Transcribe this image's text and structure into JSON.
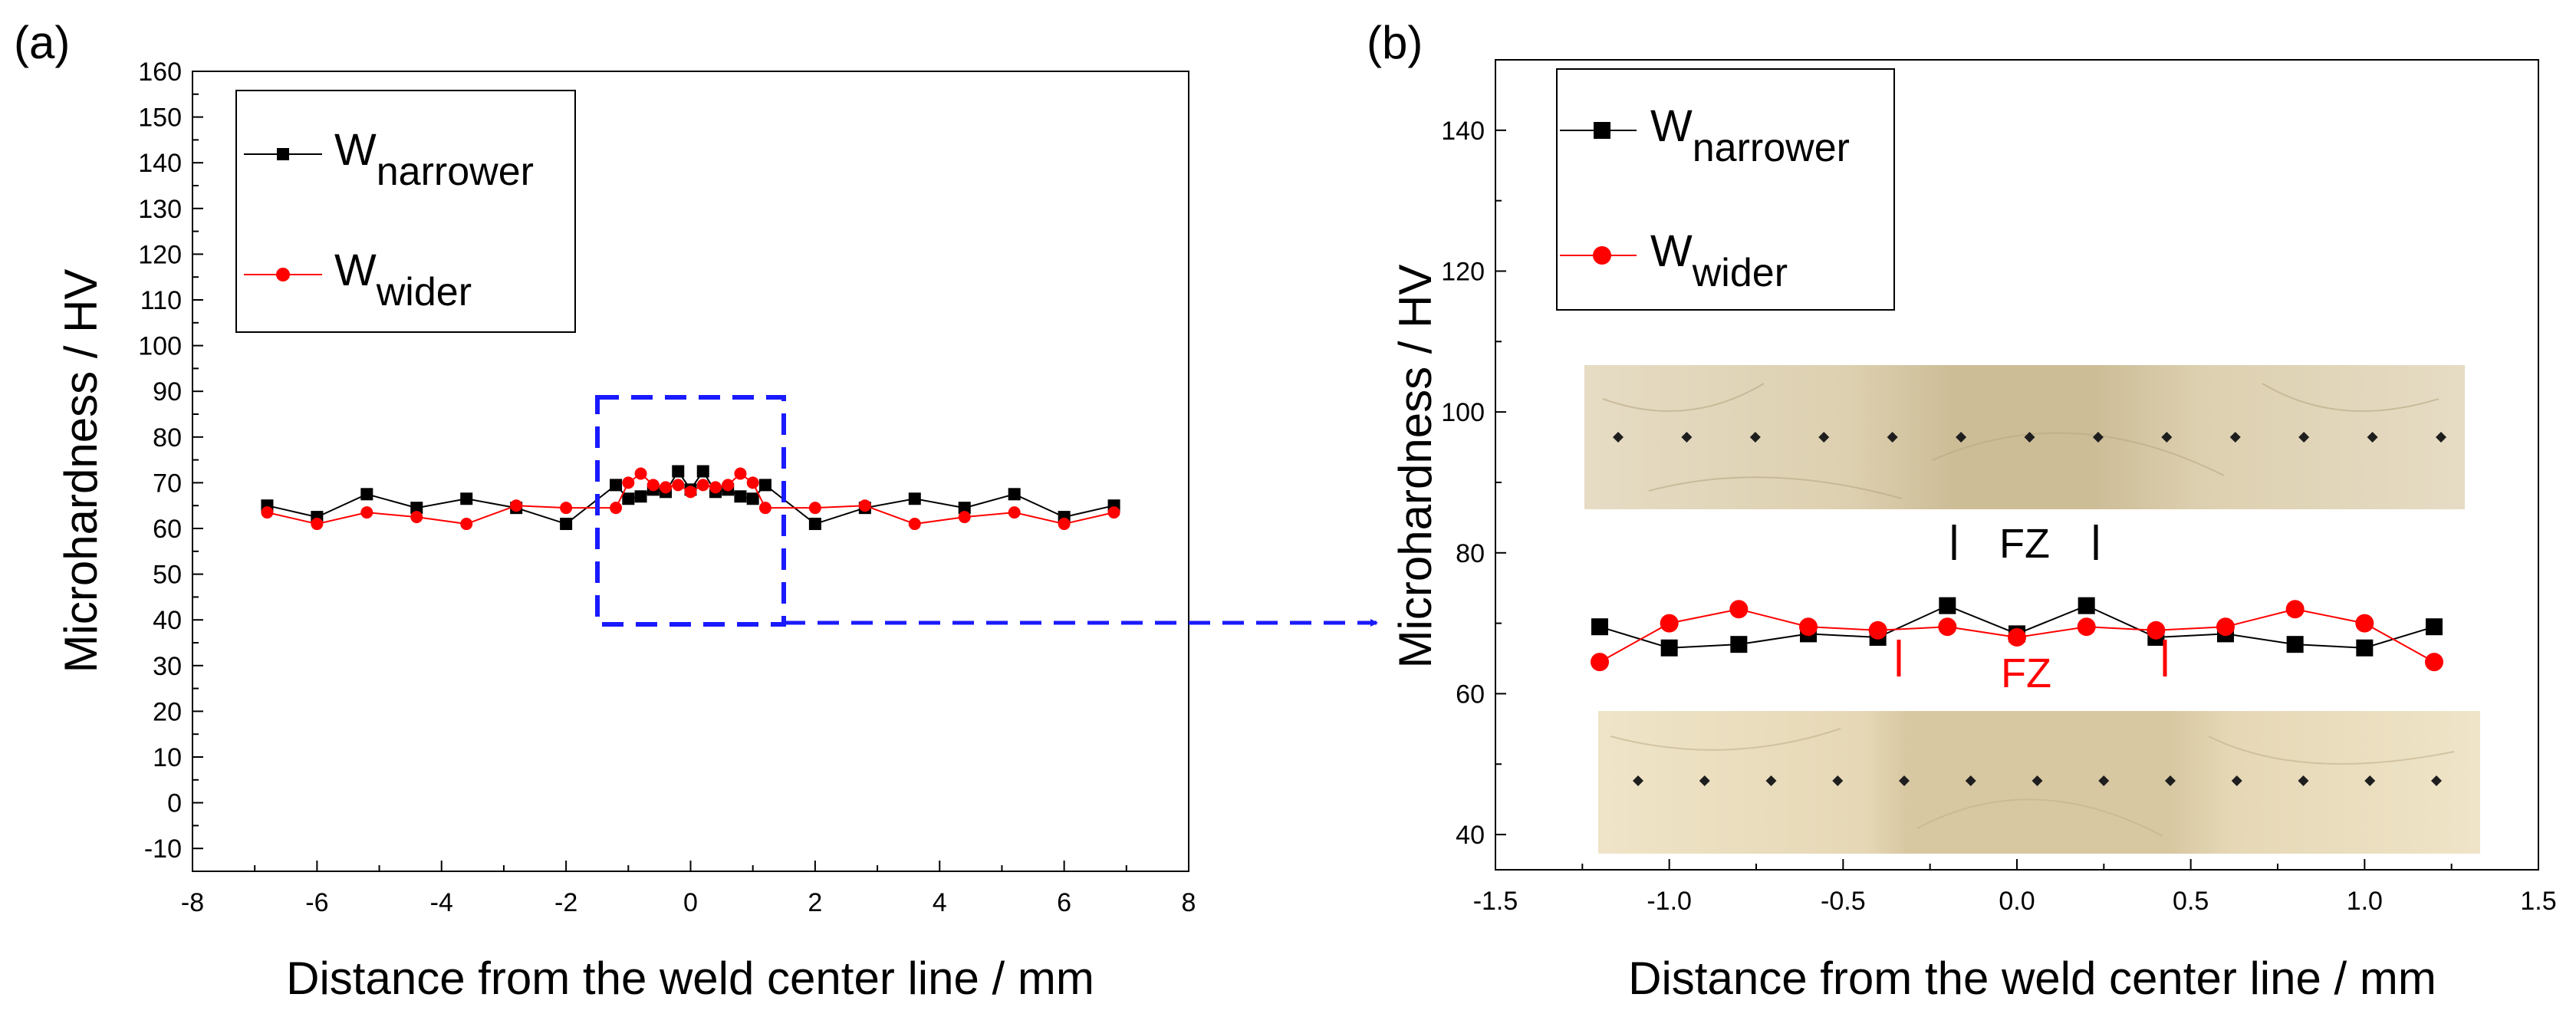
{
  "figure": {
    "panel_a_label": "(a)",
    "panel_b_label": "(b)"
  },
  "chart_data": [
    {
      "panel": "(a)",
      "type": "line",
      "xlabel": "Distance from the weld center line / mm",
      "ylabel": "Microhardness / HV",
      "xlim": [
        -8,
        8
      ],
      "ylim": [
        -15,
        160
      ],
      "xticks": [
        -8,
        -6,
        -4,
        -2,
        0,
        2,
        4,
        6,
        8
      ],
      "xtick_labels": [
        "-8",
        "-6",
        "-4",
        "-2",
        "0",
        "2",
        "4",
        "6",
        "8"
      ],
      "yticks": [
        -10,
        0,
        10,
        20,
        30,
        40,
        50,
        60,
        70,
        80,
        90,
        100,
        110,
        120,
        130,
        140,
        150,
        160
      ],
      "ytick_labels": [
        "-10",
        "0",
        "10",
        "20",
        "30",
        "40",
        "50",
        "60",
        "70",
        "80",
        "90",
        "100",
        "110",
        "120",
        "130",
        "140",
        "150",
        "160"
      ],
      "legend": [
        {
          "main": "W",
          "sub": "narrower",
          "color": "#000000",
          "marker": "square"
        },
        {
          "main": "W",
          "sub": "wider",
          "color": "#ff0000",
          "marker": "circle"
        }
      ],
      "legend_position": "top-left",
      "series": [
        {
          "name": "W narrower",
          "color": "#000000",
          "marker": "square",
          "x": [
            -6.8,
            -6.0,
            -5.2,
            -4.4,
            -3.6,
            -2.8,
            -2.0,
            -1.2,
            -1.0,
            -0.8,
            -0.6,
            -0.4,
            -0.2,
            0.0,
            0.2,
            0.4,
            0.6,
            0.8,
            1.0,
            1.2,
            2.0,
            2.8,
            3.6,
            4.4,
            5.2,
            6.0,
            6.8
          ],
          "y": [
            65,
            62.5,
            67.5,
            64.5,
            66.5,
            64.5,
            61,
            69.5,
            66.5,
            67,
            68.5,
            68,
            72.5,
            68.5,
            72.5,
            68,
            68.5,
            67,
            66.5,
            69.5,
            61,
            64.5,
            66.5,
            64.5,
            67.5,
            62.5,
            65
          ]
        },
        {
          "name": "W wider",
          "color": "#ff0000",
          "marker": "circle",
          "x": [
            -6.8,
            -6.0,
            -5.2,
            -4.4,
            -3.6,
            -2.8,
            -2.0,
            -1.2,
            -1.0,
            -0.8,
            -0.6,
            -0.4,
            -0.2,
            0.0,
            0.2,
            0.4,
            0.6,
            0.8,
            1.0,
            1.2,
            2.0,
            2.8,
            3.6,
            4.4,
            5.2,
            6.0,
            6.8
          ],
          "y": [
            63.5,
            61,
            63.5,
            62.5,
            61,
            65,
            64.5,
            64.5,
            70,
            72,
            69.5,
            69,
            69.5,
            68,
            69.5,
            69,
            69.5,
            72,
            70,
            64.5,
            64.5,
            65,
            61,
            62.5,
            63.5,
            61,
            63.5
          ]
        }
      ],
      "annotation": "dashed blue box around -1.5 to 1.5 mm, 40 to 89 HV, arrow pointing to panel (b)"
    },
    {
      "panel": "(b)",
      "type": "line",
      "xlabel": "Distance from the weld center line / mm",
      "ylabel": "Microhardness / HV",
      "xlim": [
        -1.5,
        1.5
      ],
      "ylim": [
        35,
        150
      ],
      "xticks": [
        -1.5,
        -1.0,
        -0.5,
        0.0,
        0.5,
        1.0,
        1.5
      ],
      "xtick_labels": [
        "-1.5",
        "-1.0",
        "-0.5",
        "0.0",
        "0.5",
        "1.0",
        "1.5"
      ],
      "yticks": [
        40,
        60,
        80,
        100,
        120,
        140
      ],
      "ytick_labels": [
        "40",
        "60",
        "80",
        "100",
        "120",
        "140"
      ],
      "legend": [
        {
          "main": "W",
          "sub": "narrower",
          "color": "#000000",
          "marker": "square"
        },
        {
          "main": "W",
          "sub": "wider",
          "color": "#ff0000",
          "marker": "circle"
        }
      ],
      "legend_position": "top-left",
      "series": [
        {
          "name": "W narrower",
          "color": "#000000",
          "marker": "square",
          "x": [
            -1.2,
            -1.0,
            -0.8,
            -0.6,
            -0.4,
            -0.2,
            0.0,
            0.2,
            0.4,
            0.6,
            0.8,
            1.0,
            1.2
          ],
          "y": [
            69.5,
            66.5,
            67,
            68.5,
            68,
            72.5,
            68.5,
            72.5,
            68,
            68.5,
            67,
            66.5,
            69.5
          ]
        },
        {
          "name": "W wider",
          "color": "#ff0000",
          "marker": "circle",
          "x": [
            -1.2,
            -1.0,
            -0.8,
            -0.6,
            -0.4,
            -0.2,
            0.0,
            0.2,
            0.4,
            0.6,
            0.8,
            1.0,
            1.2
          ],
          "y": [
            64.5,
            70,
            72,
            69.5,
            69,
            69.5,
            68,
            69.5,
            69,
            69.5,
            72,
            70,
            64.5
          ]
        }
      ],
      "annotations": [
        {
          "text": "FZ",
          "color": "#000000",
          "bounds_mm": [
            -0.2,
            0.2
          ]
        },
        {
          "text": "FZ",
          "color": "#ff0000",
          "bounds_mm": [
            -0.4,
            0.4
          ]
        }
      ],
      "insets": "two micrograph strips with indentation marks (upper: narrower weld, lower: wider weld)"
    }
  ]
}
